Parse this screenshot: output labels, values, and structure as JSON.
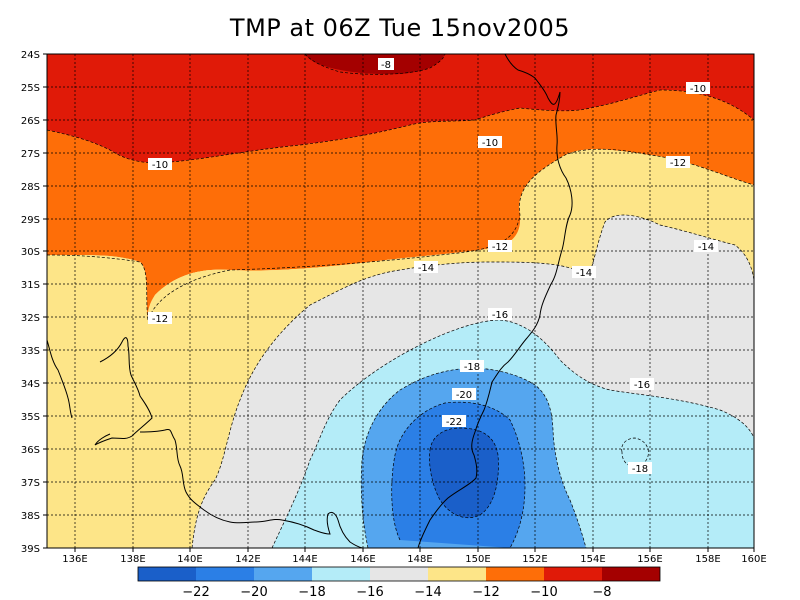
{
  "title": "TMP at 06Z Tue 15nov2005",
  "map": {
    "lat_labels": [
      "24S",
      "25S",
      "26S",
      "27S",
      "28S",
      "29S",
      "30S",
      "31S",
      "32S",
      "33S",
      "34S",
      "35S",
      "36S",
      "37S",
      "38S",
      "39S"
    ],
    "lon_labels": [
      "136E",
      "138E",
      "140E",
      "142E",
      "144E",
      "146E",
      "148E",
      "150E",
      "152E",
      "154E",
      "156E",
      "158E",
      "160E"
    ],
    "contour_labels": [
      {
        "text": "-8"
      },
      {
        "text": "-10"
      },
      {
        "text": "-10"
      },
      {
        "text": "-10"
      },
      {
        "text": "-12"
      },
      {
        "text": "-12"
      },
      {
        "text": "-12"
      },
      {
        "text": "-14"
      },
      {
        "text": "-14"
      },
      {
        "text": "-14"
      },
      {
        "text": "-16"
      },
      {
        "text": "-16"
      },
      {
        "text": "-18"
      },
      {
        "text": "-18"
      },
      {
        "text": "-20"
      },
      {
        "text": "-22"
      }
    ],
    "colors": {
      "lt_-22": "#1a5fc9",
      "-22_-20": "#2b7fe6",
      "-20_-18": "#55a6ef",
      "-18_-16": "#b4ecf8",
      "-16_-14": "#e6e6e6",
      "-14_-12": "#fde588",
      "-12_-10": "#fe6e08",
      "-10_-8": "#e01a08",
      "gt_-8": "#a40000"
    }
  },
  "colorbar": {
    "labels": [
      "−22",
      "−20",
      "−18",
      "−16",
      "−14",
      "−12",
      "−10",
      "−8"
    ],
    "colors": [
      "#1a5fc9",
      "#2b7fe6",
      "#55a6ef",
      "#b4ecf8",
      "#e6e6e6",
      "#fde588",
      "#fe6e08",
      "#e01a08",
      "#a40000"
    ]
  }
}
